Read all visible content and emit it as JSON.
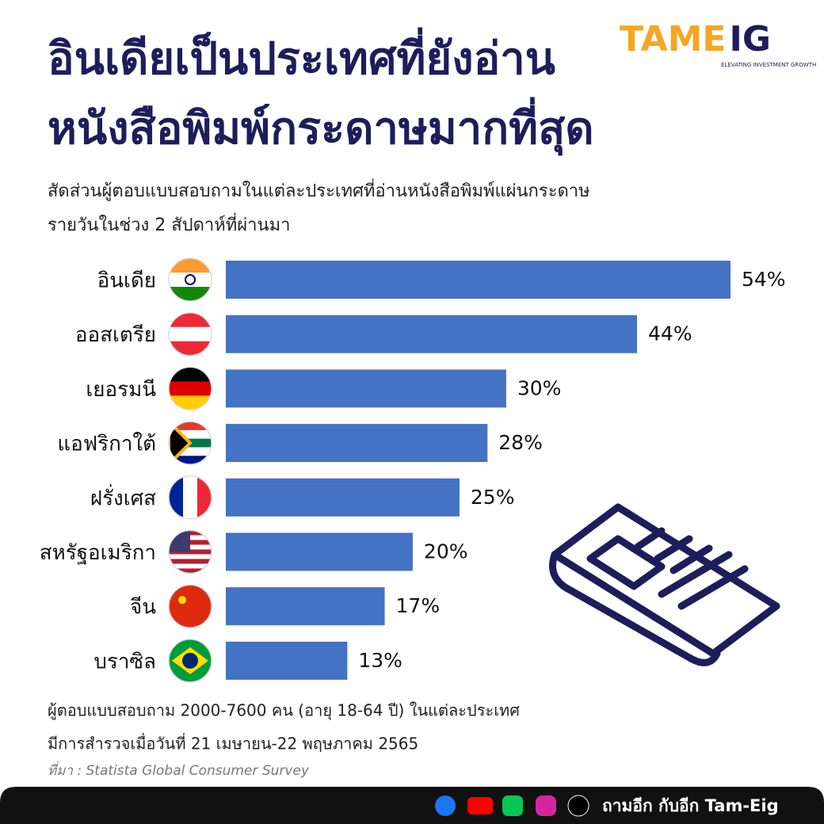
{
  "chart_data": {
    "type": "bar",
    "orientation": "horizontal",
    "title": [
      "อินเดียเป็นประเทศที่ยังอ่าน",
      "หนังสือพิมพ์กระดาษมากที่สุด"
    ],
    "subtitle": [
      "สัดส่วนผู้ตอบแบบสอบถามในแต่ละประเทศที่อ่านหนังสือพิมพ์แผ่นกระดาษ",
      "รายวันในช่วง 2 สัปดาห์ที่ผ่านมา"
    ],
    "categories": [
      "อินเดีย",
      "ออสเตรีย",
      "เยอรมนี",
      "แอฟริกาใต้",
      "ฝรั่งเศส",
      "สหรัฐอเมริกา",
      "จีน",
      "บราซิล"
    ],
    "values": [
      54,
      44,
      30,
      28,
      25,
      20,
      17,
      13
    ],
    "value_labels": [
      "54%",
      "44%",
      "30%",
      "28%",
      "25%",
      "20%",
      "17%",
      "13%"
    ],
    "color": "#4472c4",
    "notes": [
      "ผู้ตอบแบบสอบถาม 2000-7600 คน (อายุ 18-64 ปี) ในแต่ละประเทศ",
      "มีการสำรวจเมื่อวันที่ 21 เมษายน-22 พฤษภาคม 2565"
    ],
    "source": "ที่มา : Statista Global Consumer Survey"
  },
  "logo": {
    "left": "TAME",
    "right": "IG",
    "tagline": "ELEVATING INVESTMENT GROWTH"
  },
  "footer": {
    "text": "ถามอีก กับอีก Tam-Eig"
  }
}
